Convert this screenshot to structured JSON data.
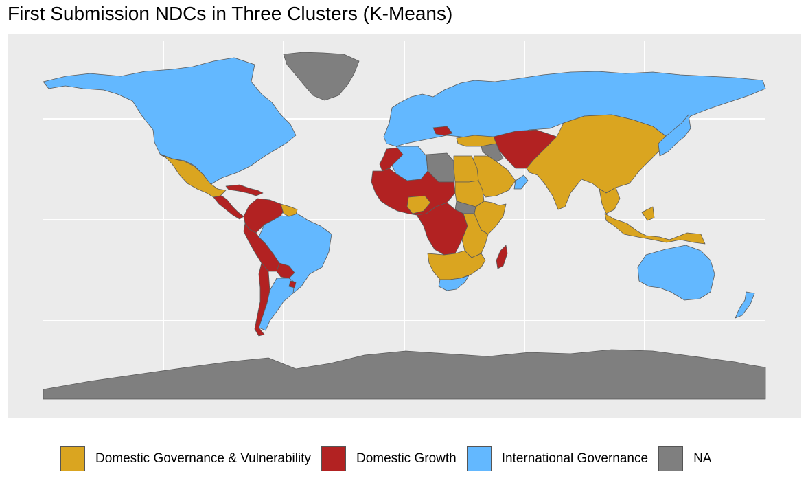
{
  "title": "First Submission NDCs in Three Clusters (K-Means)",
  "legend": [
    {
      "label": "Domestic Governance & Vulnerability",
      "color": "#daa520"
    },
    {
      "label": "Domestic Growth",
      "color": "#b22222"
    },
    {
      "label": "International Governance",
      "color": "#63b8ff"
    },
    {
      "label": "NA",
      "color": "#7f7f7f"
    }
  ],
  "map": {
    "background": "#ebebeb",
    "gridlines": true,
    "border_color": "#5a5a5a",
    "regions": [
      {
        "name": "north-america",
        "cluster": "International Governance"
      },
      {
        "name": "greenland",
        "cluster": "NA"
      },
      {
        "name": "mexico",
        "cluster": "Domestic Governance & Vulnerability"
      },
      {
        "name": "central-america",
        "cluster": "Domestic Growth"
      },
      {
        "name": "caribbean",
        "cluster": "Domestic Growth"
      },
      {
        "name": "colombia-venezuela",
        "cluster": "Domestic Growth"
      },
      {
        "name": "guyana-suriname",
        "cluster": "Domestic Governance & Vulnerability"
      },
      {
        "name": "brazil",
        "cluster": "International Governance"
      },
      {
        "name": "andes",
        "cluster": "Domestic Growth"
      },
      {
        "name": "paraguay",
        "cluster": "Domestic Growth"
      },
      {
        "name": "argentina",
        "cluster": "International Governance"
      },
      {
        "name": "uruguay",
        "cluster": "Domestic Growth"
      },
      {
        "name": "chile",
        "cluster": "Domestic Growth"
      },
      {
        "name": "europe-russia",
        "cluster": "International Governance"
      },
      {
        "name": "balkans",
        "cluster": "Domestic Growth"
      },
      {
        "name": "turkey",
        "cluster": "Domestic Governance & Vulnerability"
      },
      {
        "name": "iran-central-asia",
        "cluster": "Domestic Growth"
      },
      {
        "name": "syria-iraq",
        "cluster": "NA"
      },
      {
        "name": "arabia",
        "cluster": "Domestic Governance & Vulnerability"
      },
      {
        "name": "oman",
        "cluster": "International Governance"
      },
      {
        "name": "morocco",
        "cluster": "Domestic Growth"
      },
      {
        "name": "algeria",
        "cluster": "International Governance"
      },
      {
        "name": "libya",
        "cluster": "NA"
      },
      {
        "name": "egypt",
        "cluster": "Domestic Governance & Vulnerability"
      },
      {
        "name": "sahel-west-africa",
        "cluster": "Domestic Growth"
      },
      {
        "name": "nigeria",
        "cluster": "Domestic Governance & Vulnerability"
      },
      {
        "name": "sudan-chad",
        "cluster": "Domestic Governance & Vulnerability"
      },
      {
        "name": "south-sudan",
        "cluster": "NA"
      },
      {
        "name": "horn-of-africa",
        "cluster": "Domestic Governance & Vulnerability"
      },
      {
        "name": "central-africa",
        "cluster": "Domestic Growth"
      },
      {
        "name": "east-africa",
        "cluster": "Domestic Governance & Vulnerability"
      },
      {
        "name": "southern-africa",
        "cluster": "Domestic Governance & Vulnerability"
      },
      {
        "name": "south-africa",
        "cluster": "International Governance"
      },
      {
        "name": "madagascar",
        "cluster": "Domestic Growth"
      },
      {
        "name": "asia",
        "cluster": "Domestic Governance & Vulnerability"
      },
      {
        "name": "japan-korea",
        "cluster": "International Governance"
      },
      {
        "name": "southeast-asia",
        "cluster": "Domestic Governance & Vulnerability"
      },
      {
        "name": "australia",
        "cluster": "International Governance"
      },
      {
        "name": "new-zealand",
        "cluster": "International Governance"
      },
      {
        "name": "antarctica",
        "cluster": "NA"
      }
    ]
  }
}
